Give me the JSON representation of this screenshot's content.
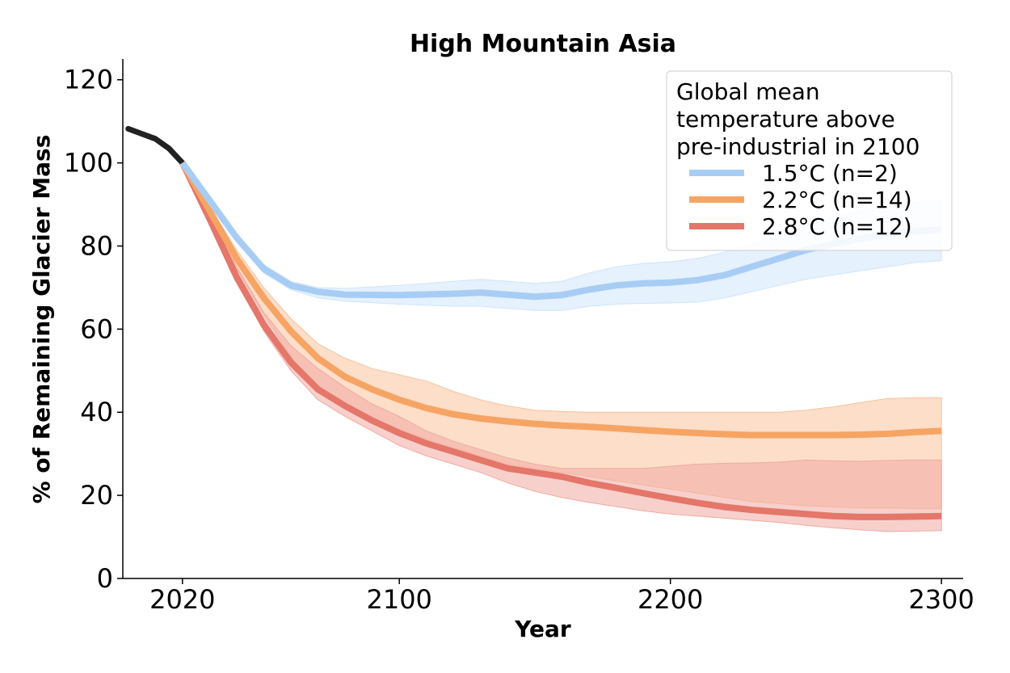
{
  "chart_data": {
    "type": "line",
    "title": "High Mountain Asia",
    "xlabel": "Year",
    "ylabel": "% of Remaining Glacier Mass",
    "xlim": [
      1998,
      2308
    ],
    "ylim": [
      0,
      125
    ],
    "xticks": [
      2020,
      2100,
      2200,
      2300
    ],
    "yticks": [
      0,
      20,
      40,
      60,
      80,
      100,
      120
    ],
    "grid": false,
    "legend": {
      "title": "Global mean\ntemperature above\npre-industrial in 2100",
      "placement": "top-right"
    },
    "historical": {
      "color": "#222222",
      "points": [
        [
          2000,
          108.2
        ],
        [
          2005,
          107
        ],
        [
          2010,
          105.8
        ],
        [
          2015,
          103.5
        ],
        [
          2020,
          100
        ]
      ]
    },
    "series": [
      {
        "name": "1.5°C (n=2)",
        "color": "#a8cdf4",
        "band_color": "#cfe5fb",
        "points": [
          [
            2020,
            100
          ],
          [
            2030,
            91
          ],
          [
            2040,
            82
          ],
          [
            2050,
            74.5
          ],
          [
            2060,
            70.5
          ],
          [
            2070,
            69
          ],
          [
            2080,
            68.3
          ],
          [
            2100,
            68.2
          ],
          [
            2120,
            68.5
          ],
          [
            2130,
            68.8
          ],
          [
            2140,
            68.3
          ],
          [
            2150,
            67.8
          ],
          [
            2160,
            68.2
          ],
          [
            2170,
            69.5
          ],
          [
            2180,
            70.5
          ],
          [
            2190,
            71
          ],
          [
            2200,
            71.2
          ],
          [
            2210,
            71.8
          ],
          [
            2220,
            73
          ],
          [
            2230,
            75
          ],
          [
            2240,
            77
          ],
          [
            2250,
            79
          ],
          [
            2260,
            80.5
          ],
          [
            2270,
            81.8
          ],
          [
            2280,
            82.8
          ],
          [
            2290,
            83.5
          ],
          [
            2300,
            84
          ]
        ],
        "lower": [
          [
            2020,
            100
          ],
          [
            2030,
            90.5
          ],
          [
            2040,
            81
          ],
          [
            2050,
            73.5
          ],
          [
            2060,
            69.5
          ],
          [
            2070,
            67.5
          ],
          [
            2080,
            66.7
          ],
          [
            2100,
            66
          ],
          [
            2120,
            65.5
          ],
          [
            2130,
            65.5
          ],
          [
            2140,
            65
          ],
          [
            2150,
            64.5
          ],
          [
            2160,
            64.5
          ],
          [
            2170,
            65.5
          ],
          [
            2180,
            66
          ],
          [
            2190,
            66.2
          ],
          [
            2200,
            66.3
          ],
          [
            2210,
            66.5
          ],
          [
            2220,
            67.5
          ],
          [
            2230,
            69
          ],
          [
            2240,
            70.5
          ],
          [
            2250,
            72
          ],
          [
            2260,
            73
          ],
          [
            2270,
            74
          ],
          [
            2280,
            75
          ],
          [
            2290,
            76
          ],
          [
            2300,
            76.5
          ]
        ],
        "upper": [
          [
            2020,
            100
          ],
          [
            2030,
            91.5
          ],
          [
            2040,
            83
          ],
          [
            2050,
            75.5
          ],
          [
            2060,
            71.5
          ],
          [
            2070,
            70
          ],
          [
            2080,
            69.8
          ],
          [
            2100,
            70.5
          ],
          [
            2120,
            71.5
          ],
          [
            2130,
            72
          ],
          [
            2140,
            71.5
          ],
          [
            2150,
            71
          ],
          [
            2160,
            71.5
          ],
          [
            2170,
            73.5
          ],
          [
            2180,
            75
          ],
          [
            2190,
            75.8
          ],
          [
            2200,
            76.2
          ],
          [
            2210,
            77
          ],
          [
            2220,
            78.5
          ],
          [
            2230,
            80.5
          ],
          [
            2240,
            83
          ],
          [
            2250,
            85
          ],
          [
            2260,
            87
          ],
          [
            2270,
            88.5
          ],
          [
            2280,
            89.5
          ],
          [
            2290,
            90.5
          ],
          [
            2300,
            91
          ]
        ]
      },
      {
        "name": "2.2°C (n=14)",
        "color": "#f6a464",
        "band_color": "#f9c39d",
        "points": [
          [
            2020,
            100
          ],
          [
            2030,
            88.5
          ],
          [
            2040,
            77
          ],
          [
            2050,
            67.5
          ],
          [
            2060,
            59.5
          ],
          [
            2070,
            53
          ],
          [
            2080,
            48.5
          ],
          [
            2090,
            45.5
          ],
          [
            2100,
            43
          ],
          [
            2110,
            41
          ],
          [
            2120,
            39.5
          ],
          [
            2130,
            38.5
          ],
          [
            2140,
            37.8
          ],
          [
            2150,
            37.2
          ],
          [
            2160,
            36.8
          ],
          [
            2170,
            36.5
          ],
          [
            2180,
            36.1
          ],
          [
            2190,
            35.7
          ],
          [
            2200,
            35.3
          ],
          [
            2210,
            35
          ],
          [
            2220,
            34.7
          ],
          [
            2230,
            34.5
          ],
          [
            2240,
            34.5
          ],
          [
            2250,
            34.5
          ],
          [
            2260,
            34.5
          ],
          [
            2270,
            34.6
          ],
          [
            2280,
            34.8
          ],
          [
            2290,
            35.2
          ],
          [
            2300,
            35.5
          ]
        ],
        "lower": [
          [
            2020,
            100
          ],
          [
            2030,
            87.5
          ],
          [
            2040,
            74.5
          ],
          [
            2050,
            63.5
          ],
          [
            2060,
            53.5
          ],
          [
            2070,
            45
          ],
          [
            2080,
            41
          ],
          [
            2090,
            38.5
          ],
          [
            2100,
            36
          ],
          [
            2110,
            33.5
          ],
          [
            2120,
            31.5
          ],
          [
            2130,
            29.5
          ],
          [
            2140,
            27.5
          ],
          [
            2150,
            26.5
          ],
          [
            2160,
            25.5
          ],
          [
            2170,
            24.5
          ],
          [
            2180,
            23.5
          ],
          [
            2190,
            22.5
          ],
          [
            2200,
            21.5
          ],
          [
            2210,
            20.5
          ],
          [
            2220,
            19.5
          ],
          [
            2230,
            18.5
          ],
          [
            2240,
            18
          ],
          [
            2250,
            17.5
          ],
          [
            2260,
            17.2
          ],
          [
            2270,
            17
          ],
          [
            2280,
            17
          ],
          [
            2290,
            16.8
          ],
          [
            2300,
            16.8
          ]
        ],
        "upper": [
          [
            2020,
            100
          ],
          [
            2030,
            89.5
          ],
          [
            2040,
            79
          ],
          [
            2050,
            70
          ],
          [
            2060,
            62.5
          ],
          [
            2070,
            56.5
          ],
          [
            2080,
            53
          ],
          [
            2090,
            50.5
          ],
          [
            2100,
            49
          ],
          [
            2110,
            47.5
          ],
          [
            2120,
            45
          ],
          [
            2130,
            43
          ],
          [
            2140,
            41.5
          ],
          [
            2150,
            40.5
          ],
          [
            2160,
            40.2
          ],
          [
            2170,
            40
          ],
          [
            2180,
            40
          ],
          [
            2190,
            40
          ],
          [
            2200,
            40
          ],
          [
            2210,
            40
          ],
          [
            2220,
            40
          ],
          [
            2230,
            40
          ],
          [
            2240,
            40
          ],
          [
            2250,
            40.5
          ],
          [
            2260,
            41.3
          ],
          [
            2270,
            42.3
          ],
          [
            2280,
            43.3
          ],
          [
            2290,
            43.5
          ],
          [
            2300,
            43.5
          ]
        ]
      },
      {
        "name": "2.8°C (n=12)",
        "color": "#e4766a",
        "band_color": "#f0aaa3",
        "points": [
          [
            2020,
            100
          ],
          [
            2030,
            86.5
          ],
          [
            2040,
            72.5
          ],
          [
            2050,
            61
          ],
          [
            2060,
            52
          ],
          [
            2070,
            45.5
          ],
          [
            2080,
            41.5
          ],
          [
            2090,
            38
          ],
          [
            2100,
            35
          ],
          [
            2110,
            32.5
          ],
          [
            2120,
            30.5
          ],
          [
            2130,
            28.5
          ],
          [
            2140,
            26.5
          ],
          [
            2150,
            25.5
          ],
          [
            2160,
            24.5
          ],
          [
            2170,
            23
          ],
          [
            2180,
            21.8
          ],
          [
            2190,
            20.5
          ],
          [
            2200,
            19.3
          ],
          [
            2210,
            18.2
          ],
          [
            2220,
            17.2
          ],
          [
            2230,
            16.5
          ],
          [
            2240,
            16
          ],
          [
            2250,
            15.5
          ],
          [
            2260,
            15
          ],
          [
            2270,
            14.8
          ],
          [
            2280,
            14.8
          ],
          [
            2290,
            14.9
          ],
          [
            2300,
            15
          ]
        ],
        "lower": [
          [
            2020,
            100
          ],
          [
            2030,
            86
          ],
          [
            2040,
            71.5
          ],
          [
            2050,
            59.5
          ],
          [
            2060,
            50
          ],
          [
            2070,
            43
          ],
          [
            2080,
            39
          ],
          [
            2090,
            35.5
          ],
          [
            2100,
            32
          ],
          [
            2110,
            29.5
          ],
          [
            2120,
            27.5
          ],
          [
            2130,
            25.5
          ],
          [
            2140,
            23
          ],
          [
            2150,
            21
          ],
          [
            2160,
            19.5
          ],
          [
            2170,
            18.3
          ],
          [
            2180,
            17.3
          ],
          [
            2190,
            16.3
          ],
          [
            2200,
            15.5
          ],
          [
            2210,
            15
          ],
          [
            2220,
            14.5
          ],
          [
            2230,
            14
          ],
          [
            2240,
            13.5
          ],
          [
            2250,
            12.8
          ],
          [
            2260,
            12.2
          ],
          [
            2270,
            11.7
          ],
          [
            2280,
            11.3
          ],
          [
            2290,
            11.4
          ],
          [
            2300,
            11.5
          ]
        ],
        "upper": [
          [
            2020,
            100
          ],
          [
            2030,
            88
          ],
          [
            2040,
            75
          ],
          [
            2050,
            64
          ],
          [
            2060,
            56
          ],
          [
            2070,
            50.5
          ],
          [
            2080,
            46
          ],
          [
            2090,
            42
          ],
          [
            2100,
            39
          ],
          [
            2110,
            35.5
          ],
          [
            2120,
            33
          ],
          [
            2130,
            31
          ],
          [
            2140,
            29
          ],
          [
            2150,
            27.5
          ],
          [
            2160,
            26.5
          ],
          [
            2170,
            26.5
          ],
          [
            2180,
            26.5
          ],
          [
            2190,
            26.5
          ],
          [
            2200,
            27
          ],
          [
            2210,
            27.5
          ],
          [
            2220,
            27.7
          ],
          [
            2230,
            27.8
          ],
          [
            2240,
            28
          ],
          [
            2250,
            28.5
          ],
          [
            2260,
            28.3
          ],
          [
            2270,
            28.2
          ],
          [
            2280,
            28.4
          ],
          [
            2290,
            28.5
          ],
          [
            2300,
            28.5
          ]
        ]
      }
    ]
  }
}
